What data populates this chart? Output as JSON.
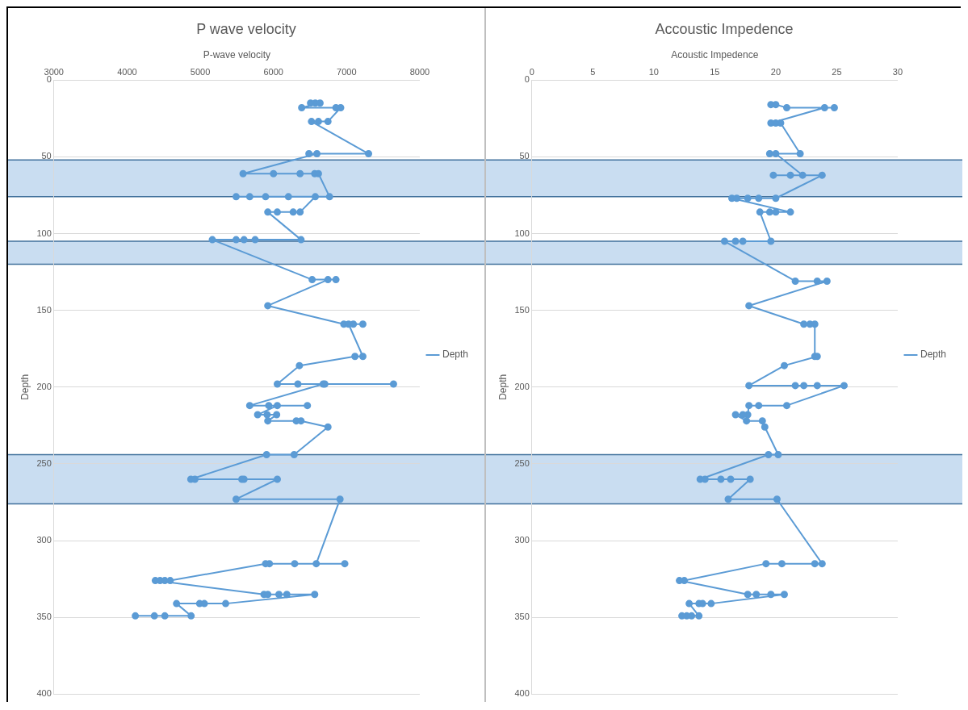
{
  "chart_data": [
    {
      "type": "line",
      "title": "P wave velocity",
      "xlabel": "P-wave velocity",
      "ylabel": "Depth",
      "xlim": [
        3000,
        8000
      ],
      "xticks": [
        3000,
        4000,
        5000,
        6000,
        7000,
        8000
      ],
      "ylim": [
        400,
        0
      ],
      "yticks": [
        0,
        50,
        100,
        150,
        200,
        250,
        300,
        350,
        400
      ],
      "grid": "y",
      "legend": "right",
      "marker": "circle",
      "bands": [
        {
          "axis": "y",
          "from": 52,
          "to": 76,
          "color": "#c9ddf1"
        },
        {
          "axis": "y",
          "from": 105,
          "to": 120,
          "color": "#c9ddf1"
        },
        {
          "axis": "y",
          "from": 244,
          "to": 276,
          "color": "#c9ddf1"
        }
      ],
      "series": [
        {
          "name": "Depth",
          "color": "#5b9bd5",
          "x": [
            6507,
            6572,
            6637,
            6386,
            6854,
            6919,
            6745,
            6615,
            6520,
            7300,
            6485,
            6594,
            5585,
            6001,
            6364,
            6564,
            6615,
            6767,
            5490,
            5676,
            5893,
            6205,
            6572,
            6364,
            6270,
            6053,
            5923,
            6377,
            5750,
            5598,
            5490,
            5165,
            6529,
            6854,
            6745,
            5923,
            6962,
            7222,
            7092,
            7027,
            7222,
            7114,
            6355,
            6053,
            7641,
            6334,
            6702,
            6680,
            5676,
            5936,
            6464,
            6053,
            5784,
            5914,
            6044,
            5923,
            6312,
            6377,
            6745,
            6283,
            5906,
            4871,
            4927,
            5568,
            5598,
            6053,
            5490,
            6910,
            6585,
            6975,
            6290,
            5945,
            5893,
            4589,
            4516,
            4451,
            4386,
            5871,
            5923,
            6075,
            6183,
            6564,
            5347,
            5056,
            4991,
            4676,
            4875,
            4516,
            4373,
            4113
          ],
          "values": [
            15,
            15,
            15,
            18,
            18,
            18,
            27,
            27,
            27,
            48,
            48,
            48,
            61,
            61,
            61,
            61,
            61,
            76,
            76,
            76,
            76,
            76,
            76,
            86,
            86,
            86,
            86,
            104,
            104,
            104,
            104,
            104,
            130,
            130,
            130,
            147,
            159,
            159,
            159,
            159,
            180,
            180,
            186,
            198,
            198,
            198,
            198,
            198,
            212,
            212,
            212,
            212,
            218,
            218,
            218,
            222,
            222,
            222,
            226,
            244,
            244,
            260,
            260,
            260,
            260,
            260,
            273,
            273,
            315,
            315,
            315,
            315,
            315,
            326,
            326,
            326,
            326,
            335,
            335,
            335,
            335,
            335,
            341,
            341,
            341,
            341,
            349,
            349,
            349,
            349
          ]
        }
      ]
    },
    {
      "type": "line",
      "title": "Accoustic Impedence",
      "xlabel": "Acoustic Impedence",
      "ylabel": "Depth",
      "xlim": [
        0,
        30
      ],
      "xticks": [
        0,
        5,
        10,
        15,
        20,
        25,
        30
      ],
      "ylim": [
        400,
        0
      ],
      "yticks": [
        0,
        50,
        100,
        150,
        200,
        250,
        300,
        350,
        400
      ],
      "grid": "y",
      "legend": "right",
      "marker": "circle",
      "bands": [
        {
          "axis": "y",
          "from": 52,
          "to": 76,
          "color": "#c9ddf1"
        },
        {
          "axis": "y",
          "from": 105,
          "to": 120,
          "color": "#c9ddf1"
        },
        {
          "axis": "y",
          "from": 244,
          "to": 276,
          "color": "#c9ddf1"
        }
      ],
      "series": [
        {
          "name": "Depth",
          "color": "#5b9bd5",
          "x": [
            19.6,
            20.0,
            20.9,
            24.8,
            24.0,
            19.6,
            20.0,
            20.4,
            22.0,
            19.5,
            20.0,
            22.2,
            21.2,
            19.8,
            23.8,
            20.0,
            18.6,
            17.7,
            16.8,
            16.4,
            21.2,
            20.0,
            19.5,
            18.7,
            19.6,
            17.3,
            16.7,
            15.8,
            21.6,
            23.4,
            24.2,
            17.8,
            22.3,
            22.8,
            23.2,
            23.2,
            23.4,
            20.7,
            17.8,
            21.6,
            22.3,
            23.4,
            25.6,
            20.9,
            18.6,
            17.8,
            17.7,
            17.3,
            16.7,
            17.6,
            18.9,
            19.1,
            20.2,
            19.4,
            13.8,
            14.2,
            15.5,
            16.3,
            17.9,
            16.1,
            20.1,
            23.8,
            23.2,
            20.5,
            19.2,
            12.5,
            12.1,
            17.7,
            18.4,
            19.6,
            20.7,
            14.7,
            14.0,
            13.7,
            12.9,
            13.7,
            13.1,
            12.7,
            12.3
          ],
          "values": [
            16,
            16,
            18,
            18,
            18,
            28,
            28,
            28,
            48,
            48,
            48,
            62,
            62,
            62,
            62,
            77,
            77,
            77,
            77,
            77,
            86,
            86,
            86,
            86,
            105,
            105,
            105,
            105,
            131,
            131,
            131,
            147,
            159,
            159,
            159,
            180,
            180,
            186,
            199,
            199,
            199,
            199,
            199,
            212,
            212,
            212,
            218,
            218,
            218,
            222,
            222,
            226,
            244,
            244,
            260,
            260,
            260,
            260,
            260,
            273,
            273,
            315,
            315,
            315,
            315,
            326,
            326,
            335,
            335,
            335,
            335,
            341,
            341,
            341,
            341,
            349,
            349,
            349,
            349
          ]
        }
      ]
    }
  ]
}
